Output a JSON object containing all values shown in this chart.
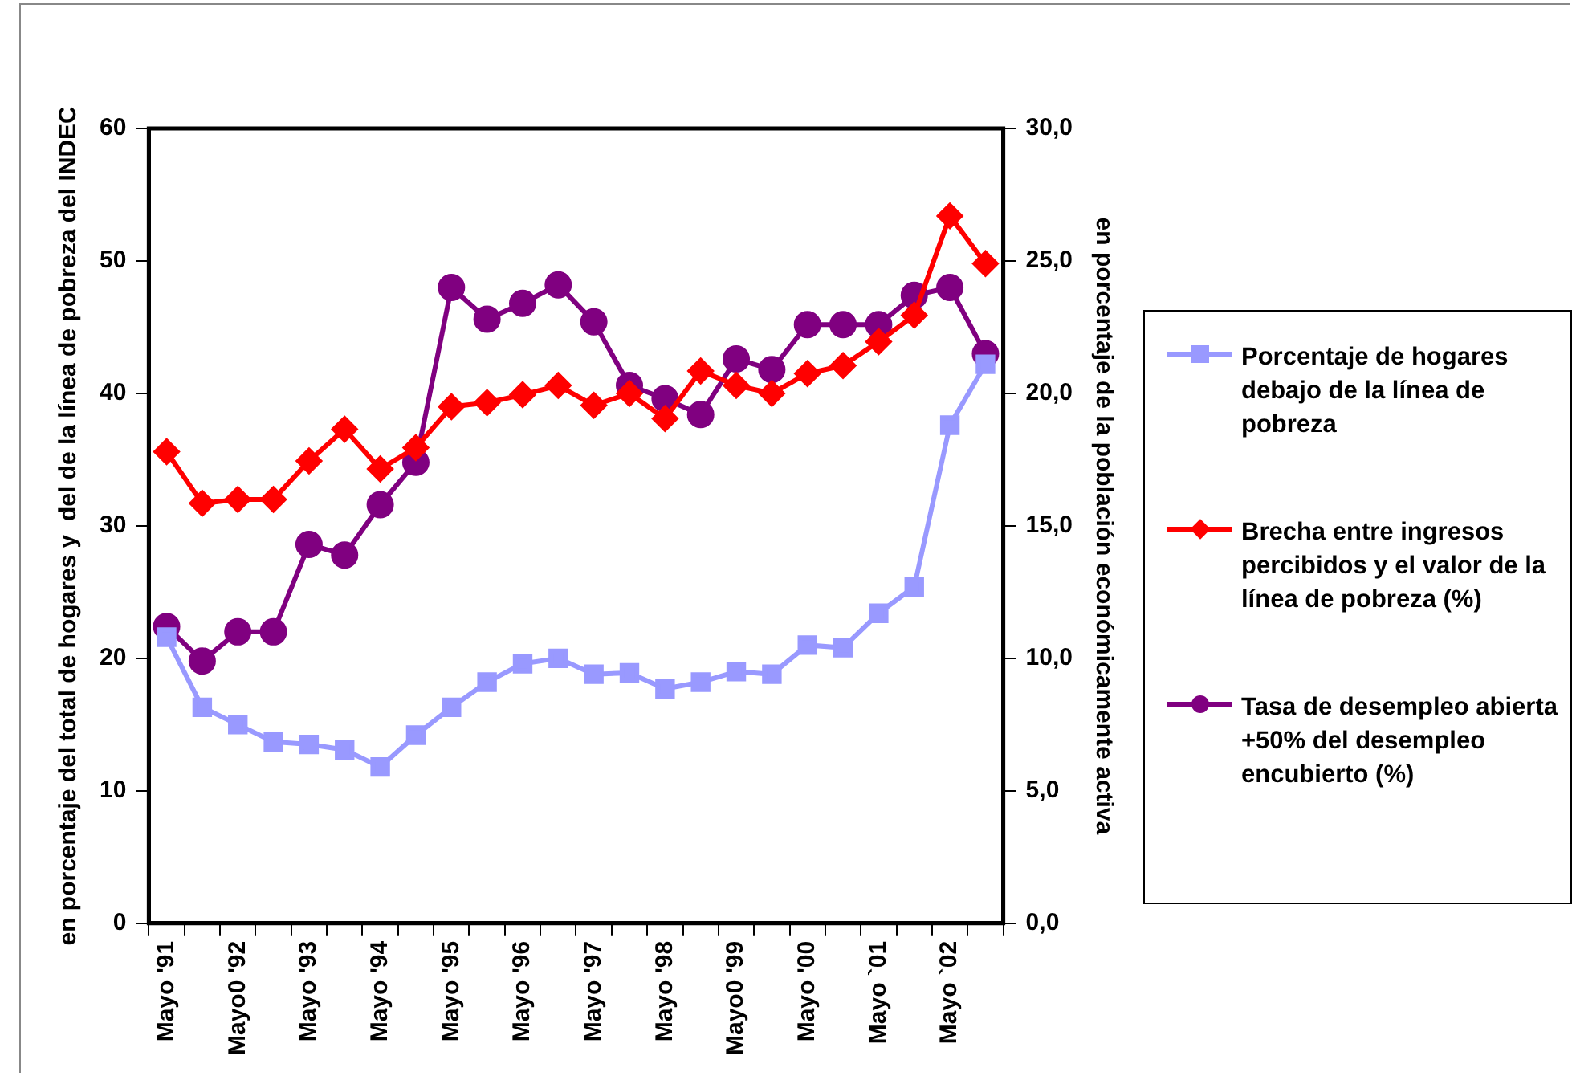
{
  "chart_data": {
    "type": "line",
    "ylabel": "en porcentaje del total de hogares y  del de la línea de pobreza del INDEC",
    "y2label": "en porcentaje de la población económicamente activa",
    "categories": [
      "Mayo '91",
      null,
      "Mayo0 '92",
      null,
      "Mayo '93",
      null,
      "Mayo '94",
      null,
      "Mayo '95",
      null,
      "Mayo '96",
      null,
      "Mayo '97",
      null,
      "Mayo '98",
      null,
      "Mayo0 '99",
      null,
      "Mayo '00",
      null,
      "Mayo `01",
      null,
      "Mayo `02",
      null
    ],
    "series": [
      {
        "name": "Porcentaje de hogares debajo de la línea de pobreza",
        "color": "#9999ff",
        "marker": "square",
        "values": [
          21.6,
          16.3,
          15.0,
          13.7,
          13.5,
          13.1,
          11.8,
          14.2,
          16.3,
          18.2,
          19.6,
          20.0,
          18.8,
          18.9,
          17.7,
          18.2,
          19.0,
          18.8,
          21.0,
          20.8,
          23.4,
          25.4,
          37.6,
          42.2
        ]
      },
      {
        "name": "Brecha entre ingresos percibidos y el valor de la línea de pobreza (%)",
        "color": "#ff0000",
        "marker": "diamond",
        "values": [
          35.6,
          31.7,
          32.0,
          32.0,
          34.9,
          37.3,
          34.3,
          35.9,
          39.0,
          39.3,
          39.9,
          40.6,
          39.1,
          40.0,
          38.1,
          41.7,
          40.6,
          40.0,
          41.5,
          42.1,
          43.9,
          45.9,
          53.4,
          49.8
        ]
      },
      {
        "name": "Tasa de desempleo abierta +50% del desempleo encubierto (%)",
        "color": "#800080",
        "marker": "circle",
        "axis": "y2",
        "values": [
          11.2,
          9.9,
          11.0,
          11.0,
          14.3,
          13.9,
          15.8,
          17.4,
          24.0,
          22.8,
          23.4,
          24.1,
          22.7,
          20.3,
          19.8,
          19.2,
          21.3,
          20.9,
          22.6,
          22.6,
          22.6,
          23.7,
          24.0,
          21.5
        ]
      }
    ],
    "ylim": [
      0,
      60
    ],
    "yticks": [
      0,
      10,
      20,
      30,
      40,
      50,
      60
    ],
    "y2lim": [
      0,
      30
    ],
    "y2ticks": [
      {
        "value": 0,
        "label": "0,0"
      },
      {
        "value": 5,
        "label": "5,0"
      },
      {
        "value": 10,
        "label": "10,0"
      },
      {
        "value": 15,
        "label": "15,0"
      },
      {
        "value": 20,
        "label": "20,0"
      },
      {
        "value": 25,
        "label": "25,0"
      },
      {
        "value": 30,
        "label": "30,0"
      }
    ],
    "grid": false,
    "legend": "right",
    "line_style": "solid"
  }
}
